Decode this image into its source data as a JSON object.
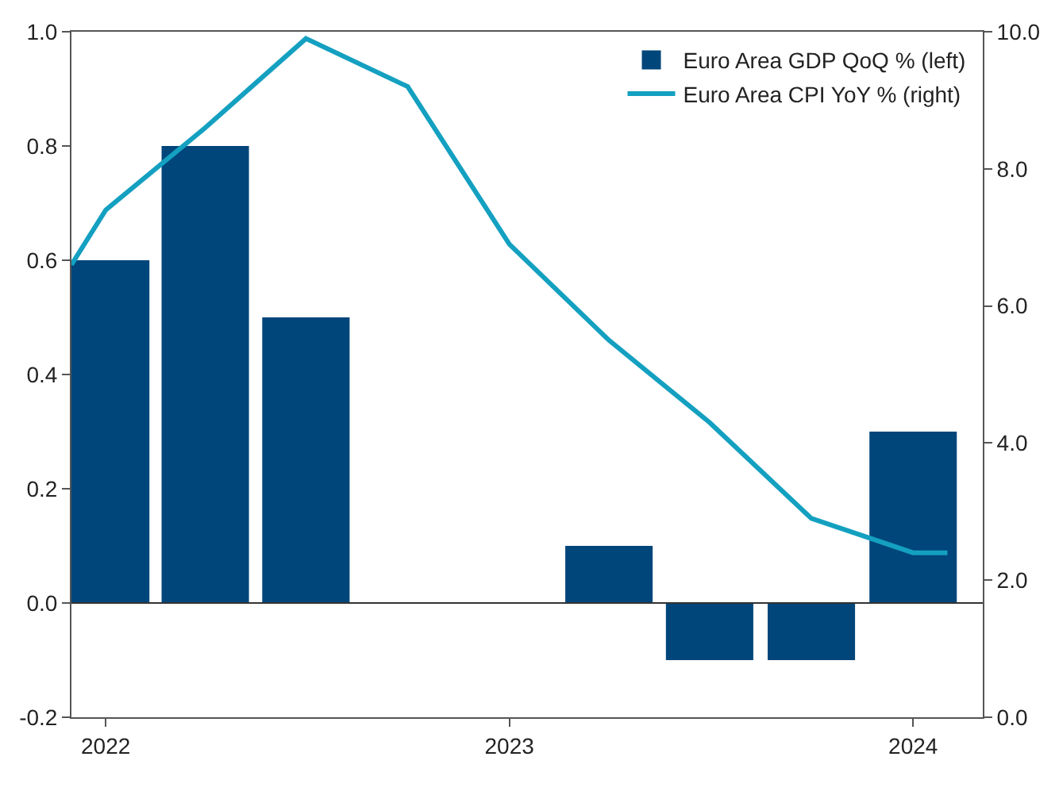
{
  "chart_data": {
    "type": "bar",
    "xlim": [
      "2021-12-01",
      "2024-03-04"
    ],
    "xticks": [
      {
        "value": "2022-01-01",
        "label": "2022"
      },
      {
        "value": "2023-01-01",
        "label": "2023"
      },
      {
        "value": "2024-01-01",
        "label": "2024"
      }
    ],
    "ylim": [
      -0.2,
      1.0
    ],
    "yticks": [
      {
        "value": -0.2,
        "label": "-0.2"
      },
      {
        "value": 0,
        "label": "0.0"
      },
      {
        "value": 0.2,
        "label": "0.2"
      },
      {
        "value": 0.4,
        "label": "0.4"
      },
      {
        "value": 0.6,
        "label": "0.6"
      },
      {
        "value": 0.8,
        "label": "0.8"
      },
      {
        "value": 1.0,
        "label": "1.0"
      }
    ],
    "y2lim": [
      0,
      10
    ],
    "y2ticks": [
      {
        "value": 0,
        "label": "0.0"
      },
      {
        "value": 2,
        "label": "2.0"
      },
      {
        "value": 4,
        "label": "4.0"
      },
      {
        "value": 6,
        "label": "6.0"
      },
      {
        "value": 8,
        "label": "8.0"
      },
      {
        "value": 10,
        "label": "10.0"
      }
    ],
    "x": [
      "2022-01",
      "2022-04",
      "2022-07",
      "2022-10",
      "2023-01",
      "2023-04",
      "2023-07",
      "2023-10",
      "2024-01"
    ],
    "series": [
      {
        "name": "Euro Area GDP QoQ % (left)",
        "color": "#00467a",
        "values": [
          0.6,
          0.8,
          0.5,
          0.0,
          0.0,
          0.1,
          -0.1,
          -0.1,
          0.3
        ]
      },
      {
        "name": "Euro Area CPI YoY % (right)",
        "type": "line",
        "axis": "y2",
        "color": "#14a0c0",
        "x": [
          "2021-12",
          "2022-01",
          "2022-04",
          "2022-07",
          "2022-10",
          "2023-01",
          "2023-04",
          "2023-07",
          "2023-10",
          "2024-01",
          "2024-02"
        ],
        "values": [
          6.6,
          7.4,
          8.6,
          9.9,
          9.2,
          6.9,
          5.5,
          4.3,
          2.9,
          2.4,
          2.4
        ]
      }
    ],
    "ref_lines": [
      {
        "axis": "y",
        "value": 0,
        "color": "#333333"
      }
    ],
    "legend": "top right",
    "marker": "none",
    "line_style": "solid"
  }
}
